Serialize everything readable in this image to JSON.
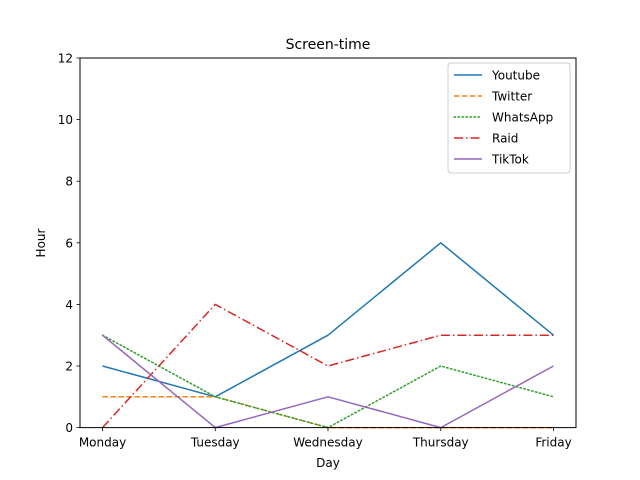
{
  "chart_data": {
    "type": "line",
    "title": "Screen-time",
    "xlabel": "Day",
    "ylabel": "Hour",
    "categories": [
      "Monday",
      "Tuesday",
      "Wednesday",
      "Thursday",
      "Friday"
    ],
    "ylim": [
      0,
      12
    ],
    "yticks": [
      0,
      2,
      4,
      6,
      8,
      10,
      12
    ],
    "grid": false,
    "legend_position": "top-right",
    "series": [
      {
        "name": "Youtube",
        "values": [
          2,
          1,
          3,
          6,
          3
        ],
        "color": "#1f77b4",
        "style": "solid"
      },
      {
        "name": "Twitter",
        "values": [
          1,
          1,
          0,
          0,
          0
        ],
        "color": "#ff7f0e",
        "style": "dashed"
      },
      {
        "name": "WhatsApp",
        "values": [
          3,
          1,
          0,
          2,
          1
        ],
        "color": "#2ca02c",
        "style": "dotted"
      },
      {
        "name": "Raid",
        "values": [
          0,
          4,
          2,
          3,
          3
        ],
        "color": "#d62728",
        "style": "dashdot"
      },
      {
        "name": "TikTok",
        "values": [
          3,
          0,
          1,
          0,
          2
        ],
        "color": "#9467bd",
        "style": "solid"
      }
    ]
  }
}
